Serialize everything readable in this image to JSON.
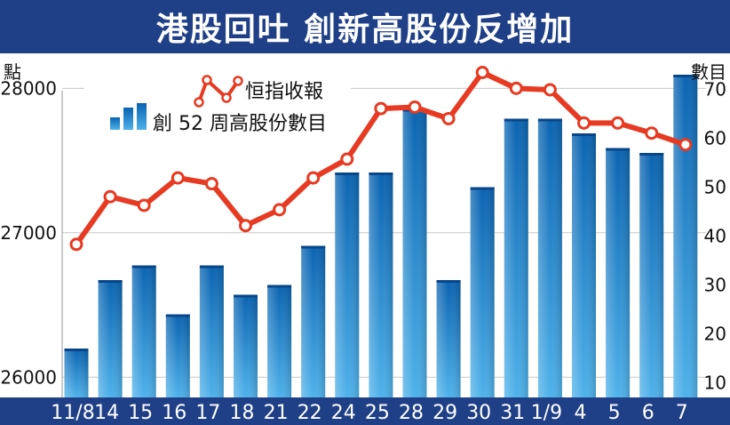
{
  "title": "港股回吐  創新高股份反增加",
  "left_axis_unit": "點",
  "right_axis_unit": "數目",
  "legend": {
    "line_label": "恒指收報",
    "bar_label": "創 52 周高股份數目"
  },
  "colors": {
    "title_bg": "#1f3f87",
    "bar_light": "#4fb2ea",
    "bar_dark": "#0a63b0",
    "line": "#e63b22",
    "marker_fill": "#ffffff",
    "axis_bar": "#1f3f87",
    "grid": "#c8c8c8"
  },
  "chart_data": {
    "type": "bar+line",
    "categories": [
      "11/8",
      "14",
      "15",
      "16",
      "17",
      "18",
      "21",
      "22",
      "24",
      "25",
      "28",
      "29",
      "30",
      "31",
      "1/9",
      "4",
      "5",
      "6",
      "7"
    ],
    "series": [
      {
        "name": "創 52 周高股份數目",
        "axis": "right",
        "type": "bar",
        "values": [
          17,
          31,
          34,
          24,
          34,
          28,
          30,
          38,
          53,
          53,
          66,
          31,
          50,
          64,
          64,
          61,
          58,
          57,
          73
        ]
      },
      {
        "name": "恒指收報",
        "axis": "left",
        "type": "line",
        "values": [
          26920,
          27250,
          27190,
          27380,
          27340,
          27050,
          27160,
          27380,
          27510,
          27860,
          27870,
          27790,
          28110,
          28000,
          27990,
          27760,
          27760,
          27690,
          27610
        ]
      }
    ],
    "left_axis": {
      "ticks": [
        26000,
        27000,
        28000
      ],
      "range": [
        25860,
        28230
      ]
    },
    "right_axis": {
      "ticks": [
        10,
        20,
        30,
        40,
        50,
        60,
        70
      ],
      "range": [
        7,
        77
      ]
    },
    "grid": true
  }
}
